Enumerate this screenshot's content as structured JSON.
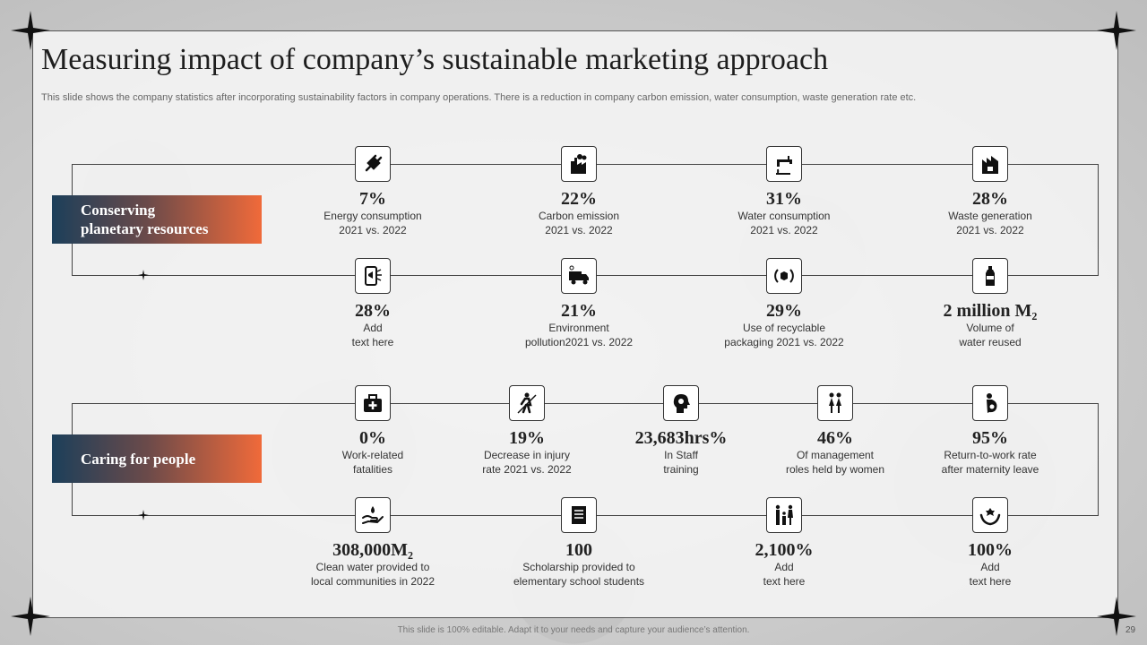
{
  "title": "Measuring impact of company’s sustainable marketing approach",
  "subtitle": "This slide shows the company statistics after incorporating sustainability factors in company operations. There is a reduction in company carbon emission, water consumption, waste generation rate etc.",
  "sections": [
    {
      "label": "Conserving\nplanetary resources",
      "stats": [
        {
          "icon": "plug-icon",
          "value": "7%",
          "desc": "Energy consumption\n2021 vs. 2022"
        },
        {
          "icon": "factory-icon",
          "value": "22%",
          "desc": "Carbon emission\n2021 vs. 2022"
        },
        {
          "icon": "faucet-icon",
          "value": "31%",
          "desc": "Water consumption\n2021 vs. 2022"
        },
        {
          "icon": "waste-icon",
          "value": "28%",
          "desc": "Waste generation\n2021 vs. 2022"
        },
        {
          "icon": "phone-megaphone-icon",
          "value": "28%",
          "desc": "Add\ntext here"
        },
        {
          "icon": "truck-icon",
          "value": "21%",
          "desc": "Environment\npollution2021 vs. 2022"
        },
        {
          "icon": "recycle-box-icon",
          "value": "29%",
          "desc": "Use of recyclable\npackaging 2021 vs. 2022"
        },
        {
          "icon": "bottle-icon",
          "value": "2 million  M₂",
          "desc": "Volume of\nwater reused"
        }
      ]
    },
    {
      "label": "Caring for people",
      "stats": [
        {
          "icon": "first-aid-kit-icon",
          "value": "0%",
          "desc": "Work-related\nfatalities"
        },
        {
          "icon": "injury-icon",
          "value": "19%",
          "desc": "Decrease in injury\nrate 2021 vs. 2022"
        },
        {
          "icon": "head-gear-icon",
          "value": "23,683hrs%",
          "desc": "In Staff\ntraining"
        },
        {
          "icon": "women-icon",
          "value": "46%",
          "desc": "Of management\nroles held by women"
        },
        {
          "icon": "pregnancy-icon",
          "value": "95%",
          "desc": "Return-to-work  rate\nafter maternity leave"
        },
        {
          "icon": "water-hand-icon",
          "value": "308,000M₂",
          "desc": "Clean water provided  to\nlocal communities in 2022"
        },
        {
          "icon": "scholarship-icon",
          "value": "100",
          "desc": "Scholarship provided to\nelementary school students"
        },
        {
          "icon": "family-icon",
          "value": "2,100%",
          "desc": "Add\ntext here"
        },
        {
          "icon": "care-hands-icon",
          "value": "100%",
          "desc": "Add\ntext here"
        }
      ]
    }
  ],
  "footer": "This slide is 100% editable. Adapt it to your needs and capture your audience’s attention.",
  "page_number": "29",
  "colors": {
    "gradient_start": "#1c3f5a",
    "gradient_end": "#f06a3a",
    "frame": "#444444"
  }
}
